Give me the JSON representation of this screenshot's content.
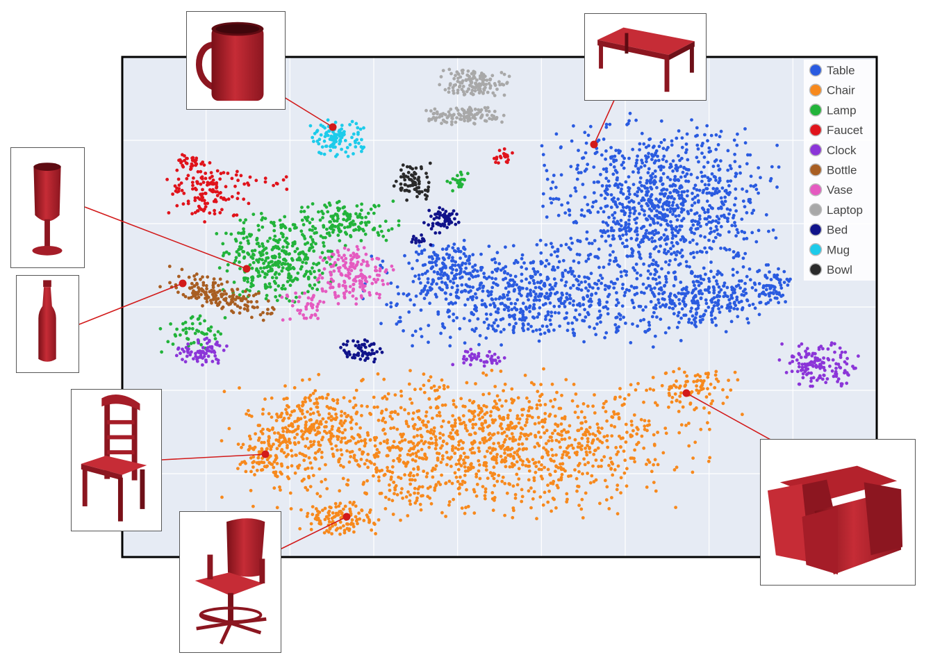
{
  "chart_data": {
    "type": "scatter",
    "title": "",
    "xlabel": "",
    "ylabel": "",
    "grid": true,
    "legend_placement": "top-right",
    "series": [
      {
        "name": "Table",
        "color": "#2a5be0",
        "clusters": [
          {
            "cx": 950,
            "cy": 290,
            "rx": 150,
            "ry": 105,
            "n": 950
          },
          {
            "cx": 765,
            "cy": 425,
            "rx": 215,
            "ry": 65,
            "n": 700
          },
          {
            "cx": 1025,
            "cy": 430,
            "rx": 95,
            "ry": 45,
            "n": 260
          },
          {
            "cx": 645,
            "cy": 385,
            "rx": 45,
            "ry": 35,
            "n": 120
          },
          {
            "cx": 1115,
            "cy": 410,
            "rx": 22,
            "ry": 25,
            "n": 45
          }
        ]
      },
      {
        "name": "Chair",
        "color": "#f7891d",
        "clusters": [
          {
            "cx": 670,
            "cy": 640,
            "rx": 310,
            "ry": 95,
            "n": 1350
          },
          {
            "cx": 440,
            "cy": 610,
            "rx": 60,
            "ry": 40,
            "n": 140
          },
          {
            "cx": 385,
            "cy": 655,
            "rx": 40,
            "ry": 28,
            "n": 90
          },
          {
            "cx": 492,
            "cy": 748,
            "rx": 55,
            "ry": 22,
            "n": 110
          },
          {
            "cx": 1000,
            "cy": 560,
            "rx": 55,
            "ry": 30,
            "n": 80
          }
        ]
      },
      {
        "name": "Lamp",
        "color": "#22b33a",
        "clusters": [
          {
            "cx": 395,
            "cy": 370,
            "rx": 80,
            "ry": 60,
            "n": 360
          },
          {
            "cx": 500,
            "cy": 320,
            "rx": 70,
            "ry": 30,
            "n": 140
          },
          {
            "cx": 280,
            "cy": 480,
            "rx": 45,
            "ry": 25,
            "n": 50
          },
          {
            "cx": 660,
            "cy": 262,
            "rx": 15,
            "ry": 15,
            "n": 20
          }
        ]
      },
      {
        "name": "Faucet",
        "color": "#e0131b",
        "clusters": [
          {
            "cx": 300,
            "cy": 275,
            "rx": 55,
            "ry": 40,
            "n": 130
          },
          {
            "cx": 277,
            "cy": 232,
            "rx": 22,
            "ry": 10,
            "n": 30
          },
          {
            "cx": 725,
            "cy": 225,
            "rx": 15,
            "ry": 10,
            "n": 20
          },
          {
            "cx": 385,
            "cy": 262,
            "rx": 30,
            "ry": 10,
            "n": 12
          }
        ]
      },
      {
        "name": "Clock",
        "color": "#8b35d8",
        "clusters": [
          {
            "cx": 1178,
            "cy": 525,
            "rx": 50,
            "ry": 30,
            "n": 140
          },
          {
            "cx": 290,
            "cy": 505,
            "rx": 40,
            "ry": 18,
            "n": 70
          },
          {
            "cx": 695,
            "cy": 515,
            "rx": 40,
            "ry": 12,
            "n": 45
          }
        ]
      },
      {
        "name": "Bottle",
        "color": "#a85e22",
        "clusters": [
          {
            "cx": 315,
            "cy": 425,
            "rx": 75,
            "ry": 20,
            "n": 170,
            "tilt": 0.32
          }
        ]
      },
      {
        "name": "Vase",
        "color": "#e55ac0",
        "clusters": [
          {
            "cx": 510,
            "cy": 395,
            "rx": 50,
            "ry": 40,
            "n": 170
          },
          {
            "cx": 440,
            "cy": 440,
            "rx": 35,
            "ry": 25,
            "n": 40
          }
        ]
      },
      {
        "name": "Laptop",
        "color": "#a8a8a8",
        "clusters": [
          {
            "cx": 680,
            "cy": 120,
            "rx": 48,
            "ry": 20,
            "n": 130
          },
          {
            "cx": 665,
            "cy": 168,
            "rx": 58,
            "ry": 13,
            "n": 110
          }
        ]
      },
      {
        "name": "Bed",
        "color": "#10138a",
        "clusters": [
          {
            "cx": 635,
            "cy": 315,
            "rx": 25,
            "ry": 18,
            "n": 60
          },
          {
            "cx": 520,
            "cy": 505,
            "rx": 28,
            "ry": 18,
            "n": 55
          },
          {
            "cx": 610,
            "cy": 345,
            "rx": 20,
            "ry": 8,
            "n": 15
          }
        ]
      },
      {
        "name": "Mug",
        "color": "#1dcbea",
        "clusters": [
          {
            "cx": 487,
            "cy": 198,
            "rx": 35,
            "ry": 24,
            "n": 110
          }
        ]
      },
      {
        "name": "Bowl",
        "color": "#2a2a2a",
        "clusters": [
          {
            "cx": 595,
            "cy": 262,
            "rx": 25,
            "ry": 30,
            "n": 75
          }
        ]
      }
    ]
  },
  "insets": {
    "mug": "mug-icon",
    "table": "table-icon",
    "goblet": "goblet-icon",
    "bottle": "bottle-icon",
    "chair": "chair-icon",
    "office_chair": "office-chair-icon",
    "armchair": "armchair-icon",
    "object_color": "#a51d28",
    "callout_color": "#d21a1a"
  }
}
